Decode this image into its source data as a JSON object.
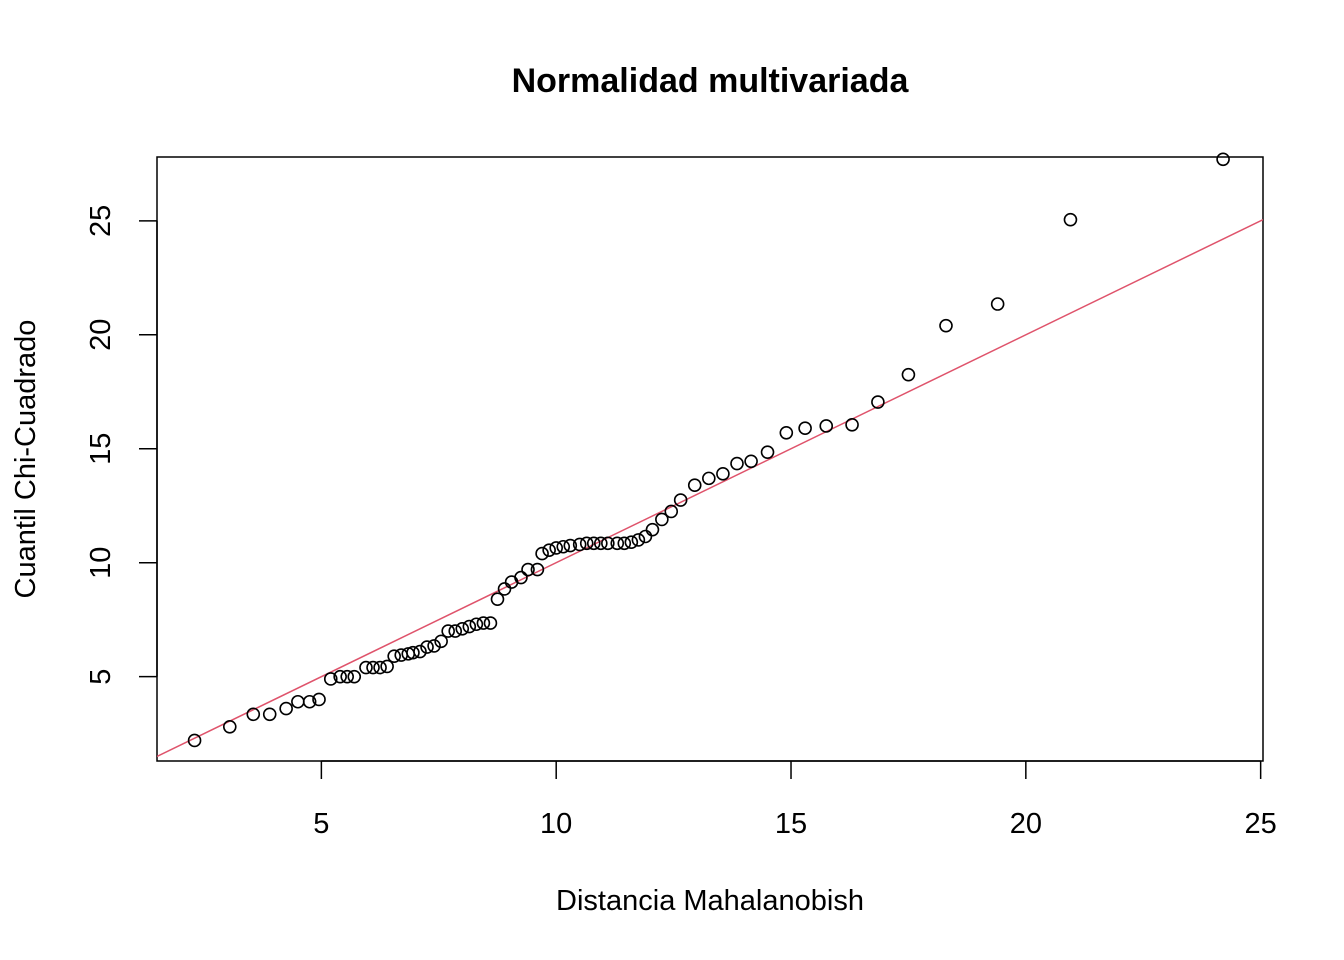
{
  "chart_data": {
    "type": "scatter",
    "title": "Normalidad multivariada",
    "xlabel": "Distancia Mahalanobish",
    "ylabel": "Cuantil Chi-Cuadrado",
    "xlim": [
      1.5,
      25.05
    ],
    "ylim": [
      1.3,
      27.8
    ],
    "xticks": [
      5,
      10,
      15,
      20,
      25
    ],
    "yticks": [
      5,
      10,
      15,
      20,
      25
    ],
    "grid": false,
    "point_color": "#000000",
    "reference_line": {
      "intercept": 0,
      "slope": 1,
      "color": "#DF536B"
    },
    "points": [
      {
        "x": 2.3,
        "y": 2.2
      },
      {
        "x": 3.05,
        "y": 2.8
      },
      {
        "x": 3.55,
        "y": 3.35
      },
      {
        "x": 3.9,
        "y": 3.35
      },
      {
        "x": 4.25,
        "y": 3.6
      },
      {
        "x": 4.5,
        "y": 3.9
      },
      {
        "x": 4.75,
        "y": 3.9
      },
      {
        "x": 4.95,
        "y": 4.0
      },
      {
        "x": 5.2,
        "y": 4.9
      },
      {
        "x": 5.4,
        "y": 5.0
      },
      {
        "x": 5.55,
        "y": 5.0
      },
      {
        "x": 5.7,
        "y": 5.0
      },
      {
        "x": 5.95,
        "y": 5.4
      },
      {
        "x": 6.1,
        "y": 5.4
      },
      {
        "x": 6.25,
        "y": 5.4
      },
      {
        "x": 6.4,
        "y": 5.45
      },
      {
        "x": 6.55,
        "y": 5.9
      },
      {
        "x": 6.7,
        "y": 5.95
      },
      {
        "x": 6.85,
        "y": 6.0
      },
      {
        "x": 6.95,
        "y": 6.05
      },
      {
        "x": 7.1,
        "y": 6.1
      },
      {
        "x": 7.25,
        "y": 6.3
      },
      {
        "x": 7.4,
        "y": 6.35
      },
      {
        "x": 7.55,
        "y": 6.55
      },
      {
        "x": 7.7,
        "y": 7.0
      },
      {
        "x": 7.85,
        "y": 7.0
      },
      {
        "x": 8.0,
        "y": 7.1
      },
      {
        "x": 8.15,
        "y": 7.2
      },
      {
        "x": 8.3,
        "y": 7.3
      },
      {
        "x": 8.45,
        "y": 7.35
      },
      {
        "x": 8.6,
        "y": 7.35
      },
      {
        "x": 8.75,
        "y": 8.4
      },
      {
        "x": 8.9,
        "y": 8.85
      },
      {
        "x": 9.05,
        "y": 9.15
      },
      {
        "x": 9.25,
        "y": 9.35
      },
      {
        "x": 9.4,
        "y": 9.7
      },
      {
        "x": 9.6,
        "y": 9.7
      },
      {
        "x": 9.7,
        "y": 10.4
      },
      {
        "x": 9.85,
        "y": 10.55
      },
      {
        "x": 10.0,
        "y": 10.65
      },
      {
        "x": 10.15,
        "y": 10.7
      },
      {
        "x": 10.3,
        "y": 10.75
      },
      {
        "x": 10.5,
        "y": 10.8
      },
      {
        "x": 10.65,
        "y": 10.85
      },
      {
        "x": 10.8,
        "y": 10.85
      },
      {
        "x": 10.95,
        "y": 10.85
      },
      {
        "x": 11.1,
        "y": 10.85
      },
      {
        "x": 11.3,
        "y": 10.85
      },
      {
        "x": 11.45,
        "y": 10.85
      },
      {
        "x": 11.6,
        "y": 10.9
      },
      {
        "x": 11.75,
        "y": 11.0
      },
      {
        "x": 11.9,
        "y": 11.15
      },
      {
        "x": 12.05,
        "y": 11.45
      },
      {
        "x": 12.25,
        "y": 11.9
      },
      {
        "x": 12.45,
        "y": 12.25
      },
      {
        "x": 12.65,
        "y": 12.75
      },
      {
        "x": 12.95,
        "y": 13.4
      },
      {
        "x": 13.25,
        "y": 13.7
      },
      {
        "x": 13.55,
        "y": 13.9
      },
      {
        "x": 13.85,
        "y": 14.35
      },
      {
        "x": 14.15,
        "y": 14.45
      },
      {
        "x": 14.5,
        "y": 14.85
      },
      {
        "x": 14.9,
        "y": 15.7
      },
      {
        "x": 15.3,
        "y": 15.9
      },
      {
        "x": 15.75,
        "y": 16.0
      },
      {
        "x": 16.3,
        "y": 16.05
      },
      {
        "x": 16.85,
        "y": 17.05
      },
      {
        "x": 17.5,
        "y": 18.25
      },
      {
        "x": 18.3,
        "y": 20.4
      },
      {
        "x": 19.4,
        "y": 21.35
      },
      {
        "x": 20.95,
        "y": 25.05
      },
      {
        "x": 24.2,
        "y": 27.7
      }
    ]
  }
}
